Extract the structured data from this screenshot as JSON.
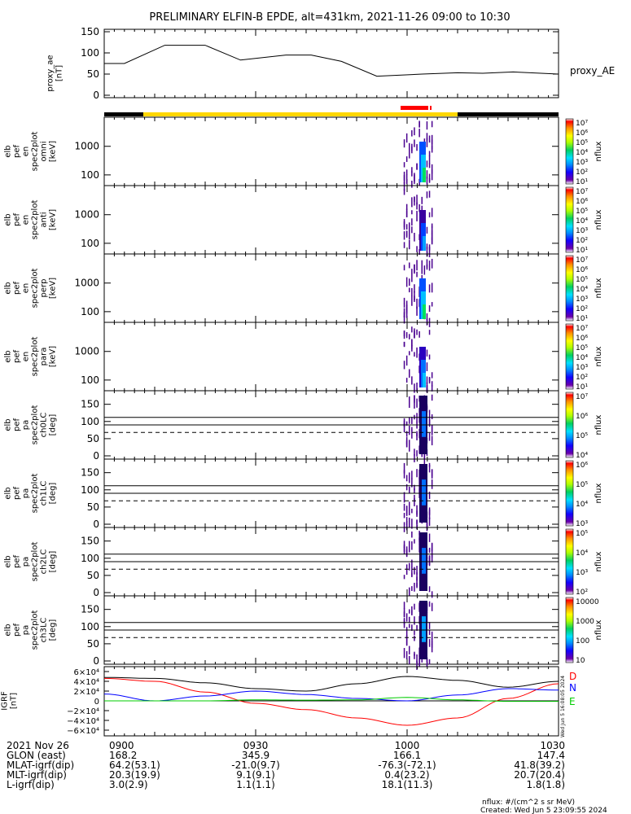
{
  "title": "PRELIMINARY ELFIN-B EPDE, alt=431km, 2021-11-26 09:00 to 10:30",
  "colors": {
    "frame": "#000000",
    "science_zone": "#ffd700",
    "fast_mode": "#ff0000",
    "trace": "#000000",
    "igrf_d": "#ff0000",
    "igrf_n": "#0000ff",
    "igrf_e": "#00cc00",
    "colorbar": [
      "#ffffff",
      "#6b00a8",
      "#1200ff",
      "#0090ff",
      "#00e0ff",
      "#00d060",
      "#b0ff00",
      "#ffff00",
      "#ff9000",
      "#ff0000",
      "#ffffff"
    ]
  },
  "panels": {
    "ae": {
      "ylabel": [
        "proxy_ae",
        "[nT]"
      ],
      "legend": "proxy_AE",
      "yticks": [
        "0",
        "50",
        "100",
        "150"
      ]
    },
    "spec": [
      {
        "ylabel": [
          "elb",
          "pef",
          "en",
          "spec2plot",
          "omni",
          "[keV]"
        ],
        "yticks": [
          "100",
          "1000"
        ],
        "cb_label": "nflux",
        "cb_ticks": [
          "10¹",
          "10²",
          "10³",
          "10⁴",
          "10⁵",
          "10⁶",
          "10⁷"
        ]
      },
      {
        "ylabel": [
          "elb",
          "pef",
          "en",
          "spec2plot",
          "anti",
          "[keV]"
        ],
        "yticks": [
          "100",
          "1000"
        ],
        "cb_label": "nflux",
        "cb_ticks": [
          "10¹",
          "10²",
          "10³",
          "10⁴",
          "10⁵",
          "10⁶",
          "10⁷"
        ]
      },
      {
        "ylabel": [
          "elb",
          "pef",
          "en",
          "spec2plot",
          "perp",
          "[keV]"
        ],
        "yticks": [
          "100",
          "1000"
        ],
        "cb_label": "nflux",
        "cb_ticks": [
          "10¹",
          "10²",
          "10³",
          "10⁴",
          "10⁵",
          "10⁶",
          "10⁷"
        ]
      },
      {
        "ylabel": [
          "elb",
          "pef",
          "en",
          "spec2plot",
          "para",
          "[keV]"
        ],
        "yticks": [
          "100",
          "1000"
        ],
        "cb_label": "nflux",
        "cb_ticks": [
          "10¹",
          "10²",
          "10³",
          "10⁴",
          "10⁵",
          "10⁶",
          "10⁷"
        ]
      }
    ],
    "pa": [
      {
        "ylabel": [
          "elb",
          "pef",
          "pa",
          "spec2plot",
          "ch0LC",
          "[deg]"
        ],
        "yticks": [
          "0",
          "50",
          "100",
          "150"
        ],
        "cb_label": "nflux",
        "cb_ticks": [
          "10⁴",
          "10⁵",
          "10⁶",
          "10⁷"
        ]
      },
      {
        "ylabel": [
          "elb",
          "pef",
          "pa",
          "spec2plot",
          "ch1LC",
          "[deg]"
        ],
        "yticks": [
          "0",
          "50",
          "100",
          "150"
        ],
        "cb_label": "nflux",
        "cb_ticks": [
          "10³",
          "10⁴",
          "10⁵",
          "10⁶"
        ]
      },
      {
        "ylabel": [
          "elb",
          "pef",
          "pa",
          "spec2plot",
          "ch2LC",
          "[deg]"
        ],
        "yticks": [
          "0",
          "50",
          "100",
          "150"
        ],
        "cb_label": "nflux",
        "cb_ticks": [
          "10²",
          "10³",
          "10⁴",
          "10⁵"
        ]
      },
      {
        "ylabel": [
          "elb",
          "pef",
          "pa",
          "spec2plot",
          "ch3LC",
          "[deg]"
        ],
        "yticks": [
          "0",
          "50",
          "100",
          "150"
        ],
        "cb_label": "nflux",
        "cb_ticks": [
          "10",
          "100",
          "1000",
          "10000"
        ]
      }
    ],
    "igrf": {
      "ylabel": [
        "IGRF",
        "[nT]"
      ],
      "yticks": [
        "−6×10⁴",
        "−4×10⁴",
        "−2×10⁴",
        "0",
        "2×10⁴",
        "4×10⁴",
        "6×10⁴"
      ],
      "legend": [
        "D",
        "N",
        "E"
      ],
      "side_note": "Wed Jun  5 16:08:05 2024"
    }
  },
  "footer": {
    "rows": [
      {
        "label": "2021 Nov 26",
        "values": [
          "0900",
          "0930",
          "1000",
          "1030"
        ]
      },
      {
        "label": "GLON (east)",
        "values": [
          "168.2",
          "345.9",
          "166.1",
          "147.4"
        ]
      },
      {
        "label": "MLAT-igrf(dip)",
        "values": [
          "64.2(53.1)",
          "-21.0(9.7)",
          "-76.3(-72.1)",
          "41.8(39.2)"
        ]
      },
      {
        "label": "MLT-igrf(dip)",
        "values": [
          "20.3(19.9)",
          "9.1(9.1)",
          "0.4(23.2)",
          "20.7(20.4)"
        ]
      },
      {
        "label": "L-igrf(dip)",
        "values": [
          "3.0(2.9)",
          "1.1(1.1)",
          "18.1(11.3)",
          "1.8(1.8)"
        ]
      }
    ],
    "units_note": "nflux: #/(cm^2 s sr MeV)",
    "created": "Created: Wed Jun  5 23:09:55 2024"
  },
  "chart_data": [
    {
      "type": "line",
      "title": "PRELIMINARY ELFIN-B EPDE, alt=431km, 2021-11-26 09:00 to 10:30",
      "ylabel": "proxy_ae [nT]",
      "xlim": [
        "09:00",
        "10:30"
      ],
      "ylim": [
        0,
        150
      ],
      "x_minutes": [
        0,
        4,
        12,
        20,
        27,
        36,
        41,
        47,
        54,
        63,
        70,
        75,
        81,
        90
      ],
      "series": [
        {
          "name": "proxy_AE",
          "x": [
            "09:00",
            "09:04",
            "09:12",
            "09:20",
            "09:27",
            "09:36",
            "09:41",
            "09:47",
            "09:54",
            "10:03",
            "10:10",
            "10:15",
            "10:21",
            "10:30"
          ],
          "values": [
            75,
            75,
            118,
            118,
            83,
            95,
            95,
            80,
            45,
            50,
            53,
            52,
            55,
            50
          ]
        }
      ]
    },
    {
      "type": "bar",
      "title": "",
      "categories": [
        "09:00-09:08",
        "09:08-10:10",
        "10:10-10:30"
      ],
      "values": [
        "outside",
        "science zone",
        "outside"
      ],
      "fast_mode_interval": [
        "09:59",
        "10:05"
      ]
    },
    {
      "type": "heatmap",
      "title": "elb pef en spec2plot omni/anti/perp/para",
      "ylabel": "[keV]",
      "yscale": "log",
      "ylim": [
        55,
        8000
      ],
      "data_interval": [
        "09:59",
        "10:05"
      ],
      "colorbar": {
        "label": "nflux",
        "range": [
          10,
          10000000
        ],
        "scale": "log"
      },
      "peak_nflux": {
        "omni": 1000000,
        "anti": 10000,
        "perp": 1000000,
        "para": 100000
      }
    },
    {
      "type": "heatmap",
      "title": "elb pef pa spec2plot ch0LC..ch3LC",
      "ylabel": "[deg]",
      "ylim": [
        0,
        180
      ],
      "data_interval": [
        "09:59",
        "10:05"
      ],
      "reference_lines_deg": [
        90,
        112,
        68
      ],
      "colorbar_ranges": [
        [
          3000,
          10000000
        ],
        [
          1000,
          1000000
        ],
        [
          100,
          100000
        ],
        [
          10,
          10000
        ]
      ]
    },
    {
      "type": "line",
      "title": "IGRF",
      "ylabel": "IGRF [nT]",
      "ylim": [
        -70000,
        70000
      ],
      "x": [
        "09:00",
        "09:10",
        "09:20",
        "09:30",
        "09:40",
        "09:50",
        "10:00",
        "10:10",
        "10:20",
        "10:30"
      ],
      "series": [
        {
          "name": "total",
          "values": [
            48000,
            46000,
            37000,
            25000,
            20000,
            35000,
            50000,
            42000,
            28000,
            40000
          ]
        },
        {
          "name": "D",
          "values": [
            46000,
            40000,
            18000,
            -5000,
            -18000,
            -35000,
            -50000,
            -35000,
            5000,
            35000
          ]
        },
        {
          "name": "N",
          "values": [
            14000,
            0,
            10000,
            20000,
            13000,
            5000,
            0,
            12000,
            25000,
            22000
          ]
        },
        {
          "name": "E",
          "values": [
            0,
            0,
            0,
            2000,
            1500,
            2000,
            7000,
            2000,
            -1000,
            -1000
          ]
        }
      ]
    }
  ]
}
